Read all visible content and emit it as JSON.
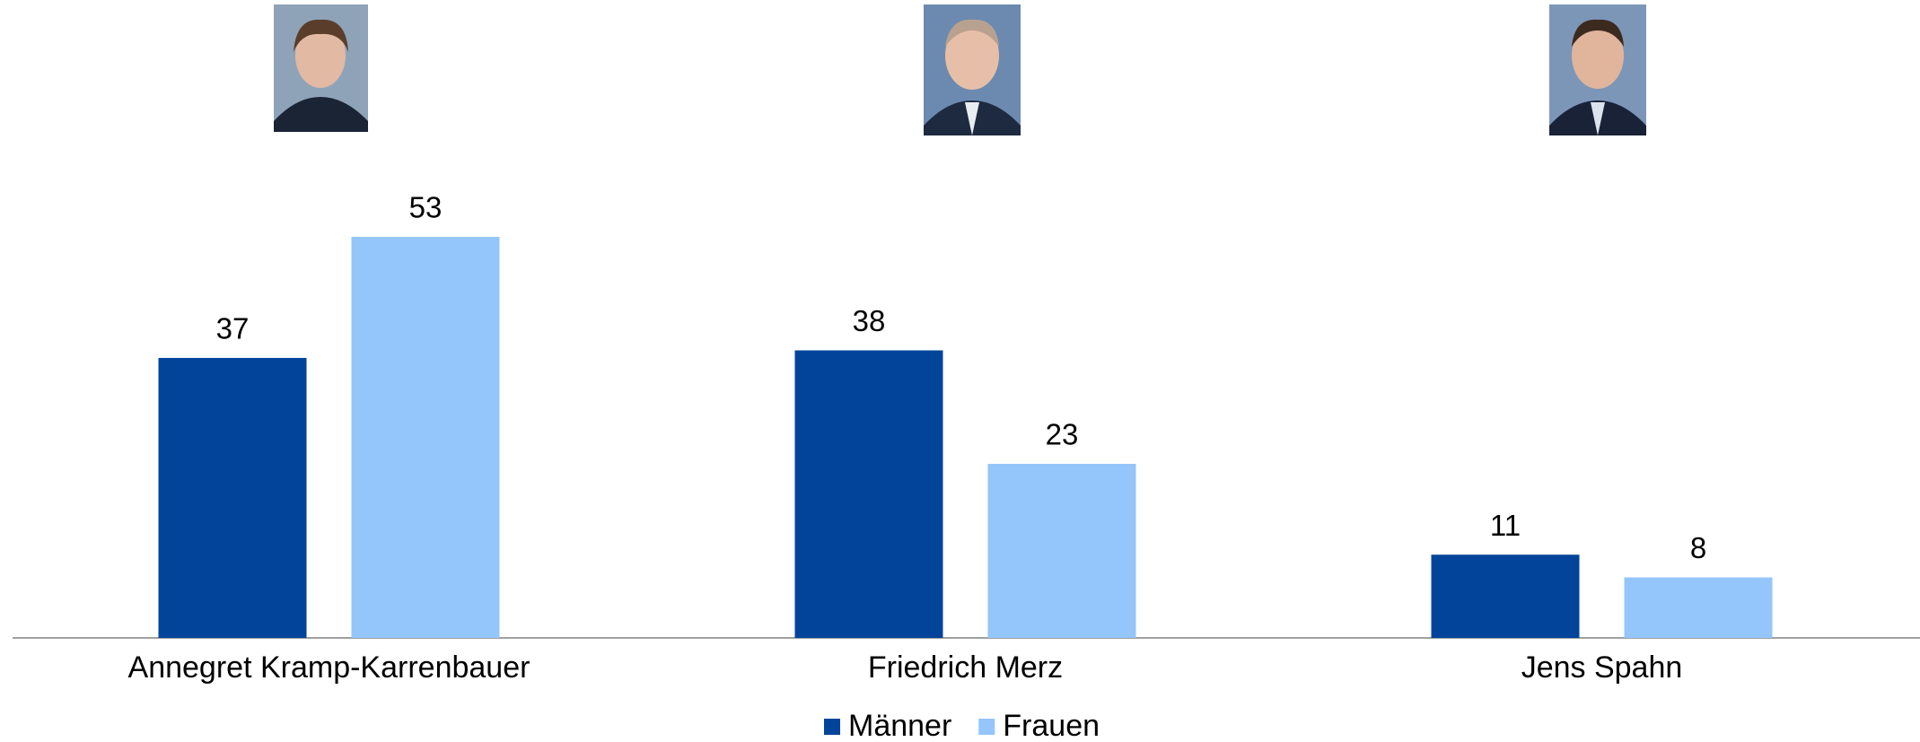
{
  "chart_data": {
    "type": "bar",
    "categories": [
      "Annegret Kramp-Karrenbauer",
      "Friedrich Merz",
      "Jens Spahn"
    ],
    "series": [
      {
        "name": "Männer",
        "color": "#02449a",
        "values": [
          37,
          38,
          11
        ]
      },
      {
        "name": "Frauen",
        "color": "#94c5fb",
        "values": [
          53,
          23,
          8
        ]
      }
    ]
  }
}
